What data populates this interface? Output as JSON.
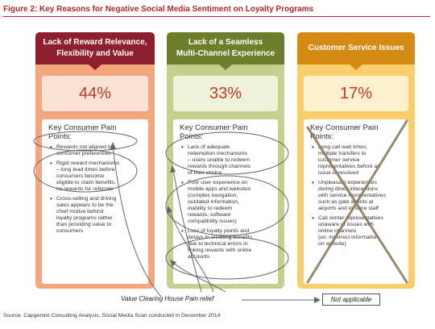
{
  "figure_title": "Figure 2: Key Reasons for Negative Social Media Sentiment on Loyalty Programs",
  "columns": [
    {
      "header_lines": [
        "Lack of Reward Relevance,",
        "Flexibility and Value"
      ],
      "percentage": "44%",
      "pain_heading_lines": [
        "Key Consumer Pain",
        "Points:"
      ],
      "points": [
        [
          "Rewards not aligned to",
          "consumer preferences"
        ],
        [
          "Rigid reward mechanisms",
          "– long lead times before",
          "consumers become",
          "eligible to claim benefits,",
          "no rewards for referrals"
        ],
        [
          "Cross-selling and driving",
          "sales appears to be the",
          "chief motive behind",
          "loyalty programs rather",
          "than providing value to",
          "consumers"
        ]
      ]
    },
    {
      "header_lines": [
        "Lack of a Seamless",
        "Multi-Channel Experience"
      ],
      "percentage": "33%",
      "pain_heading_lines": [
        "Key Consumer Pain",
        "Points:"
      ],
      "points": [
        [
          "Lack of adequate",
          "redemption mechanisms",
          "– users unable to redeem",
          "rewards through channels",
          "of their choice"
        ],
        [
          "Poor user experience on",
          "mobile apps and websites",
          "(complex navigation,",
          "outdated information,",
          "inability to redeem",
          "rewards, software",
          "compatibility issues)"
        ],
        [
          "Loss of loyalty points and",
          "delays in crediting benefits",
          "due to technical errors in",
          "linking rewards with online",
          "accounts"
        ]
      ]
    },
    {
      "header_lines": [
        "Customer Service Issues"
      ],
      "percentage": "17%",
      "pain_heading_lines": [
        "Key Consumer Pain",
        "Points:"
      ],
      "points": [
        [
          "Long call wait times,",
          "multiple transfers to",
          "customer service",
          "representatives before an",
          "issue is resolved"
        ],
        [
          "Unpleasant experiences",
          "during direct interactions",
          "with service representatives",
          "such as gate agents at",
          "airports and in-store staff"
        ],
        [
          "Call center representatives",
          "unaware of issues with",
          "online channels",
          "(ex: incorrect information",
          "on website)"
        ]
      ]
    }
  ],
  "annotations": {
    "relief_label": "Value Clearing House Pain relief",
    "not_applicable": "Not applicable"
  },
  "source": "Source: Capgemini Consulting Analysis, Social Media Scan conducted in December 2014",
  "colors": {
    "title_red": "#b5282a",
    "col1_header": "#8e1f2e",
    "col1_body": "#f2a77e",
    "col1_pct_bg": "#fbe3d3",
    "col2_header": "#6e7f2b",
    "col2_body": "#c5d08e",
    "col2_pct_bg": "#eef2d8",
    "col3_header": "#d68a16",
    "col3_body": "#f8cf6c",
    "col3_pct_bg": "#fdf0cc",
    "pct_text": "#c0392b"
  }
}
